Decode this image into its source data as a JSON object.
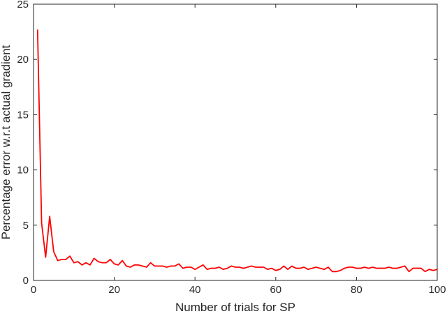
{
  "chart_data": {
    "type": "line",
    "title": "",
    "xlabel": "Number of trials for SP",
    "ylabel": "Percentage error w.r.t actual gradient",
    "xlim": [
      0,
      100
    ],
    "ylim": [
      0,
      25
    ],
    "xticks": [
      "0",
      "20",
      "40",
      "60",
      "80",
      "100"
    ],
    "yticks": [
      "0",
      "5",
      "10",
      "15",
      "20",
      "25"
    ],
    "grid": false,
    "legend": "none",
    "colors": {
      "line": "#ff0000",
      "axis": "#262626",
      "background": "#ffffff"
    },
    "series": [
      {
        "x": [
          1,
          2,
          3,
          4,
          5,
          6,
          7,
          8,
          9,
          10,
          11,
          12,
          13,
          14,
          15,
          16,
          17,
          18,
          19,
          20,
          21,
          22,
          23,
          24,
          25,
          26,
          27,
          28,
          29,
          30,
          31,
          32,
          33,
          34,
          35,
          36,
          37,
          38,
          39,
          40,
          41,
          42,
          43,
          44,
          45,
          46,
          47,
          48,
          49,
          50,
          51,
          52,
          53,
          54,
          55,
          56,
          57,
          58,
          59,
          60,
          61,
          62,
          63,
          64,
          65,
          66,
          67,
          68,
          69,
          70,
          71,
          72,
          73,
          74,
          75,
          76,
          77,
          78,
          79,
          80,
          81,
          82,
          83,
          84,
          85,
          86,
          87,
          88,
          89,
          90,
          91,
          92,
          93,
          94,
          95,
          96,
          97,
          98,
          99,
          100
        ],
        "values": [
          22.7,
          5.2,
          2.1,
          5.8,
          2.6,
          1.8,
          1.9,
          1.9,
          2.2,
          1.6,
          1.7,
          1.4,
          1.6,
          1.4,
          2.0,
          1.7,
          1.6,
          1.6,
          1.9,
          1.5,
          1.4,
          1.8,
          1.3,
          1.2,
          1.4,
          1.4,
          1.3,
          1.2,
          1.6,
          1.3,
          1.3,
          1.3,
          1.2,
          1.3,
          1.3,
          1.5,
          1.1,
          1.2,
          1.2,
          1.0,
          1.2,
          1.4,
          1.0,
          1.1,
          1.1,
          1.2,
          1.0,
          1.1,
          1.3,
          1.2,
          1.2,
          1.1,
          1.2,
          1.3,
          1.2,
          1.2,
          1.2,
          1.0,
          1.1,
          0.9,
          1.0,
          1.3,
          1.0,
          1.3,
          1.1,
          1.1,
          1.2,
          1.0,
          1.1,
          1.2,
          1.1,
          1.0,
          1.2,
          0.8,
          0.8,
          0.9,
          1.1,
          1.2,
          1.2,
          1.1,
          1.1,
          1.2,
          1.1,
          1.2,
          1.1,
          1.1,
          1.1,
          1.2,
          1.1,
          1.1,
          1.2,
          1.3,
          0.8,
          1.1,
          1.1,
          1.1,
          0.8,
          1.0,
          0.9,
          1.0
        ]
      }
    ]
  }
}
